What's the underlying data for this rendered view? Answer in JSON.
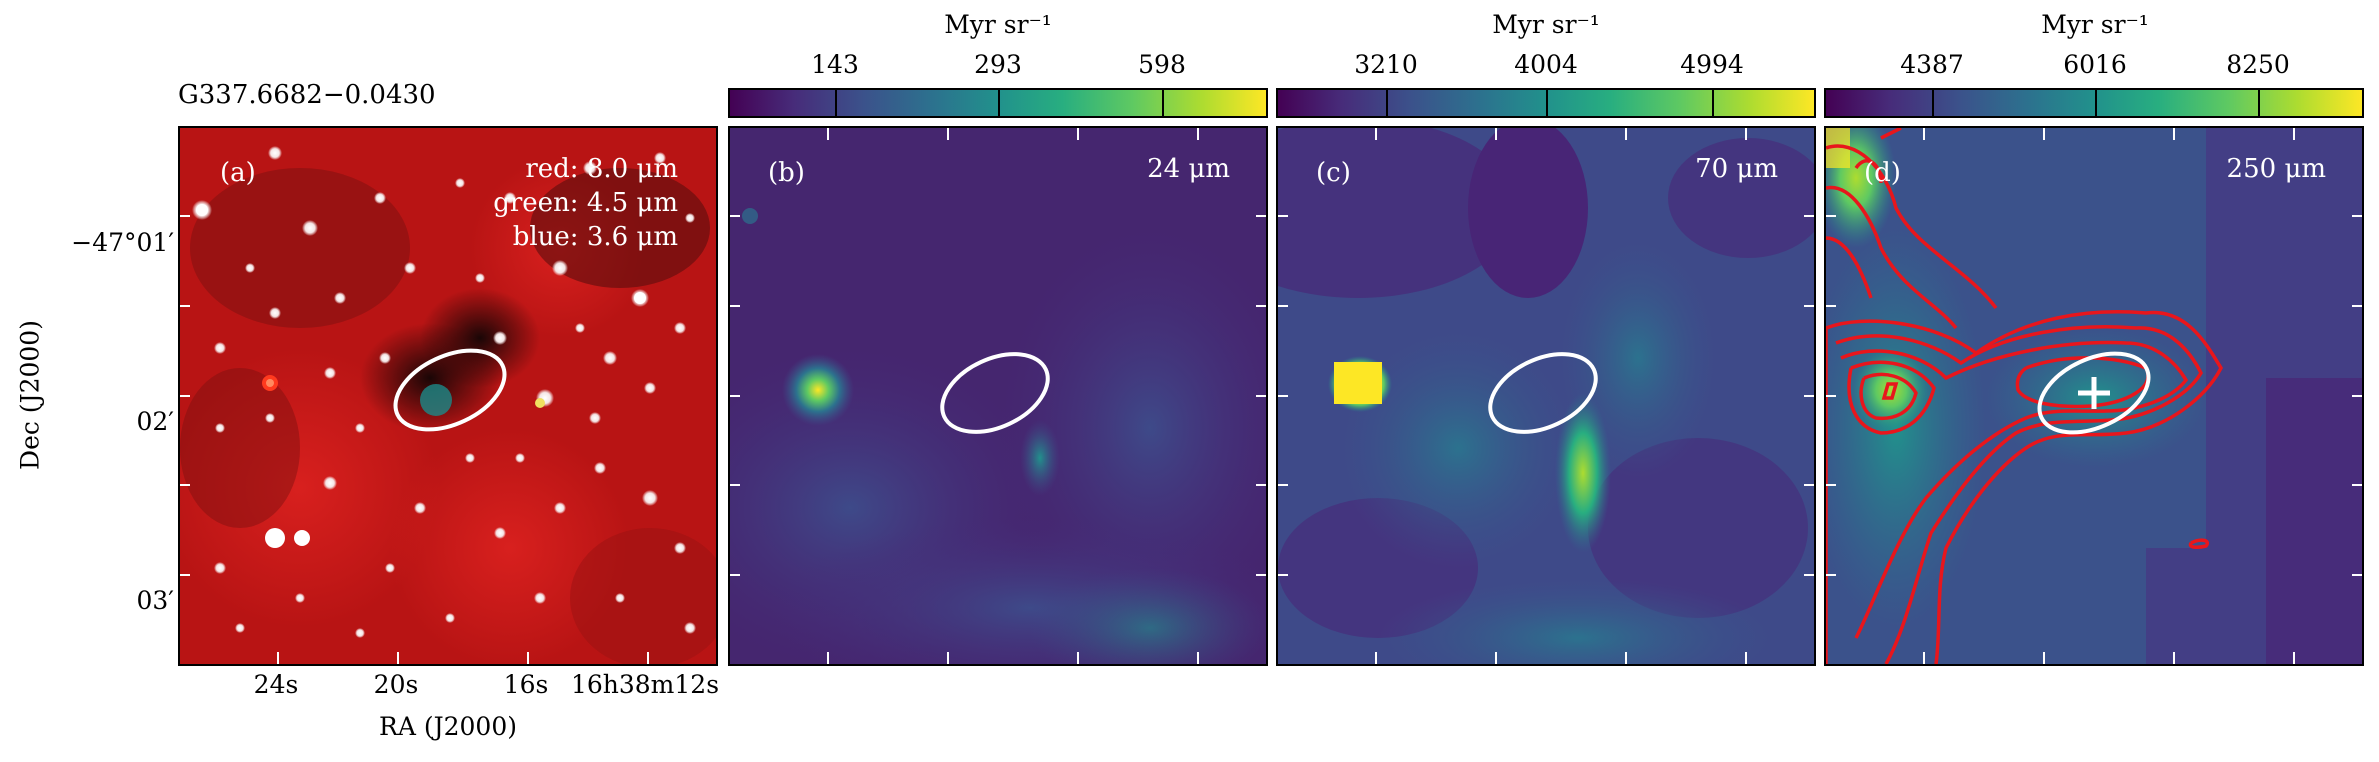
{
  "source_name": "G337.6682−0.0430",
  "axes": {
    "ylabel": "Dec (J2000)",
    "xlabel": "RA (J2000)",
    "yticks": [
      "−47°01′",
      "02′",
      "03′"
    ],
    "xticks": [
      "24s",
      "20s",
      "16s",
      "16h38m12s"
    ]
  },
  "panels": [
    {
      "label": "(a)",
      "kind": "rgb",
      "bands": [
        "red: 8.0 μm",
        "green: 4.5 μm",
        "blue: 3.6 μm"
      ]
    },
    {
      "label": "(b)",
      "band": "24 μm",
      "colorbar": {
        "unit": "Myr sr⁻¹",
        "ticks": [
          "143",
          "293",
          "598"
        ]
      }
    },
    {
      "label": "(c)",
      "band": "70 μm",
      "colorbar": {
        "unit": "Myr sr⁻¹",
        "ticks": [
          "3210",
          "4004",
          "4994"
        ]
      }
    },
    {
      "label": "(d)",
      "band": "250 μm",
      "colorbar": {
        "unit": "Myr sr⁻¹",
        "ticks": [
          "4387",
          "6016",
          "8250"
        ]
      },
      "contours": "red",
      "marker": "plus"
    }
  ],
  "colors": {
    "ellipse": "#ffffff",
    "contour": "#e8161c",
    "colormap": "viridis"
  }
}
